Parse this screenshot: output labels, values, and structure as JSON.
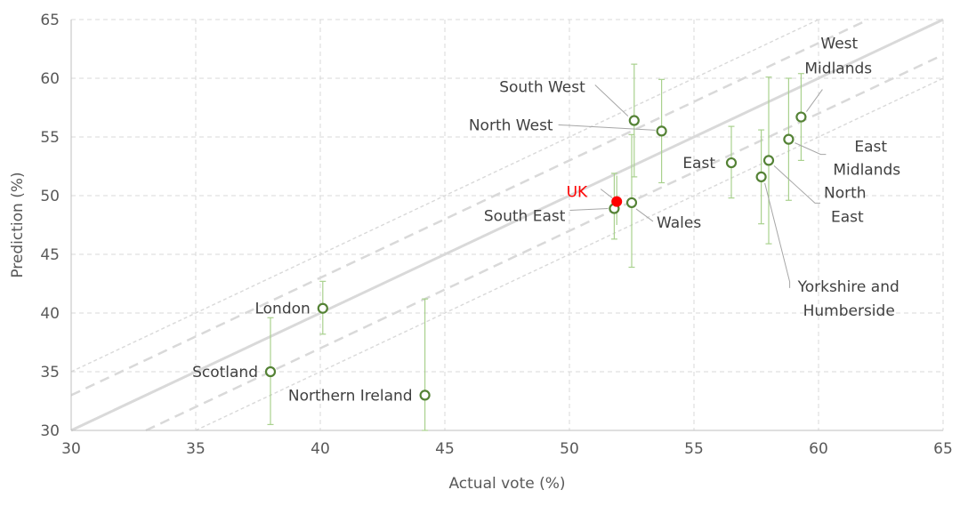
{
  "chart_data": {
    "type": "scatter",
    "title": "",
    "xlabel": "Actual vote (%)",
    "ylabel": "Prediction (%)",
    "xlim": [
      30,
      65
    ],
    "ylim": [
      30,
      65
    ],
    "xticks": [
      "30",
      "35",
      "40",
      "45",
      "50",
      "55",
      "60",
      "65"
    ],
    "yticks": [
      "30",
      "35",
      "40",
      "45",
      "50",
      "55",
      "60",
      "65"
    ],
    "grid": true,
    "legend": "none",
    "reference_lines": [
      {
        "label": "",
        "style": "solid",
        "intercept": 0
      },
      {
        "label": "",
        "style": "dashed",
        "intercept": 3
      },
      {
        "label": "",
        "style": "dashed",
        "intercept": -3
      },
      {
        "label": "",
        "style": "dotted",
        "intercept": 5
      },
      {
        "label": "",
        "style": "dotted",
        "intercept": -5
      }
    ],
    "points": [
      {
        "label": "London",
        "x": 40.1,
        "y": 40.4,
        "err_low": 38.2,
        "err_high": 42.7
      },
      {
        "label": "Scotland",
        "x": 38.0,
        "y": 35.0,
        "err_low": 30.5,
        "err_high": 39.6
      },
      {
        "label": "Northern Ireland",
        "x": 44.2,
        "y": 33.0,
        "err_low": 30.0,
        "err_high": 41.2
      },
      {
        "label": "South West",
        "x": 52.6,
        "y": 56.4,
        "err_low": 51.6,
        "err_high": 61.2
      },
      {
        "label": "North West",
        "x": 53.7,
        "y": 55.5,
        "err_low": 51.1,
        "err_high": 59.9
      },
      {
        "label": "South East",
        "x": 51.8,
        "y": 48.9,
        "err_low": 46.3,
        "err_high": 51.9
      },
      {
        "label": "Wales",
        "x": 52.5,
        "y": 49.4,
        "err_low": 43.9,
        "err_high": 55.2
      },
      {
        "label": "East",
        "x": 56.5,
        "y": 52.8,
        "err_low": 49.8,
        "err_high": 55.9
      },
      {
        "label": "West Midlands",
        "x": 59.3,
        "y": 56.7,
        "err_low": 53.0,
        "err_high": 60.4
      },
      {
        "label": "East Midlands",
        "x": 58.8,
        "y": 54.8,
        "err_low": 49.6,
        "err_high": 60.0
      },
      {
        "label": "North East",
        "x": 58.0,
        "y": 53.0,
        "err_low": 45.9,
        "err_high": 60.1
      },
      {
        "label": "Yorkshire and Humberside",
        "x": 57.7,
        "y": 51.6,
        "err_low": 47.6,
        "err_high": 55.6
      }
    ],
    "highlight": {
      "label": "UK",
      "x": 51.9,
      "y": 49.5,
      "color": "#ff0000"
    },
    "colors": {
      "marker": "#548235",
      "error_bar": "#a9d18e",
      "reference": "#d9d9d9",
      "grid": "#d9d9d9",
      "leader": "#a6a6a6",
      "text": "#404040",
      "axis_text": "#595959",
      "uk": "#ff0000"
    }
  }
}
